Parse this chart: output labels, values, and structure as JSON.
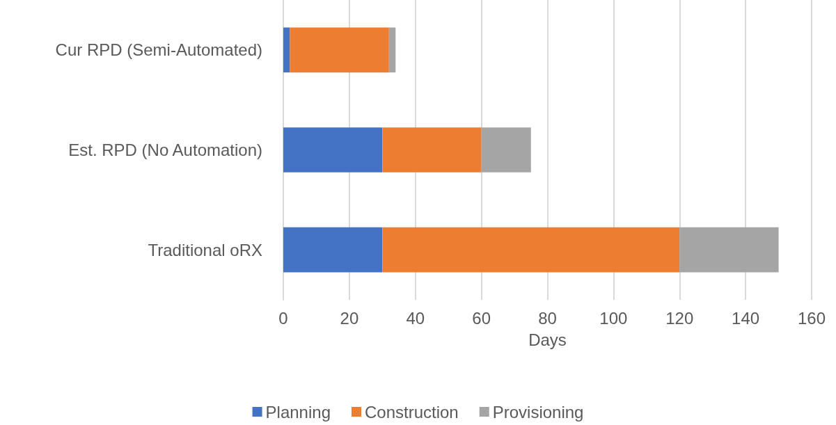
{
  "chart_data": {
    "type": "bar",
    "orientation": "horizontal",
    "stacked": true,
    "xlabel": "Days",
    "categories": [
      "Cur RPD (Semi-Automated)",
      "Est. RPD (No Automation)",
      "Traditional oRX"
    ],
    "series": [
      {
        "name": "Planning",
        "color": "#4472c4",
        "values": [
          2,
          30,
          30
        ]
      },
      {
        "name": "Construction",
        "color": "#ed7d31",
        "values": [
          30,
          30,
          90
        ]
      },
      {
        "name": "Provisioning",
        "color": "#a5a5a5",
        "values": [
          2,
          15,
          30
        ]
      }
    ],
    "xlim": [
      0,
      160
    ],
    "xticks": [
      0,
      20,
      40,
      60,
      80,
      100,
      120,
      140,
      160
    ],
    "grid": "x",
    "legend": "bottom"
  }
}
